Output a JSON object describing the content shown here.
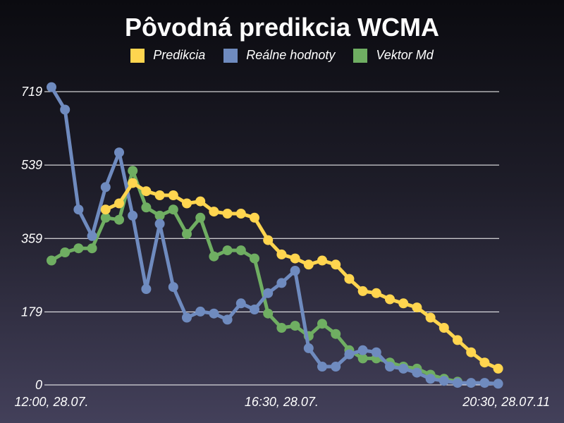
{
  "chart_data": {
    "type": "line",
    "title": "Pôvodná predikcia WCMA",
    "yticks": [
      "0",
      "179",
      "359",
      "539",
      "719"
    ],
    "ytick_values": [
      0,
      179,
      359,
      539,
      719
    ],
    "ylim": [
      0,
      719
    ],
    "xtick_labels": [
      "12:00, 28.07.",
      "16:30, 28.07.",
      "20:30, 28.07.11"
    ],
    "xtick_index": [
      0,
      17,
      33
    ],
    "grid": true,
    "legend_position": "top",
    "series": [
      {
        "name": "Predikcia",
        "color": "#ffd54f",
        "start_index": 4,
        "values": [
          430,
          445,
          495,
          475,
          465,
          465,
          445,
          450,
          425,
          420,
          420,
          410,
          355,
          320,
          310,
          295,
          305,
          295,
          260,
          230,
          225,
          210,
          200,
          190,
          165,
          140,
          110,
          80,
          55,
          40
        ]
      },
      {
        "name": "Reálne hodnoty",
        "color": "#6f8bbf",
        "start_index": 0,
        "values": [
          730,
          675,
          430,
          365,
          485,
          570,
          415,
          235,
          395,
          240,
          165,
          180,
          175,
          160,
          200,
          185,
          225,
          250,
          280,
          90,
          45,
          45,
          75,
          85,
          80,
          45,
          40,
          30,
          15,
          10,
          5,
          5,
          5,
          3
        ]
      },
      {
        "name": "Vektor Md",
        "color": "#6fae62",
        "start_index": 0,
        "values": [
          305,
          325,
          335,
          335,
          410,
          405,
          525,
          435,
          415,
          430,
          370,
          410,
          315,
          330,
          330,
          310,
          175,
          140,
          145,
          120,
          150,
          125,
          85,
          65,
          65,
          55,
          45,
          40,
          25,
          15,
          8
        ]
      }
    ]
  }
}
